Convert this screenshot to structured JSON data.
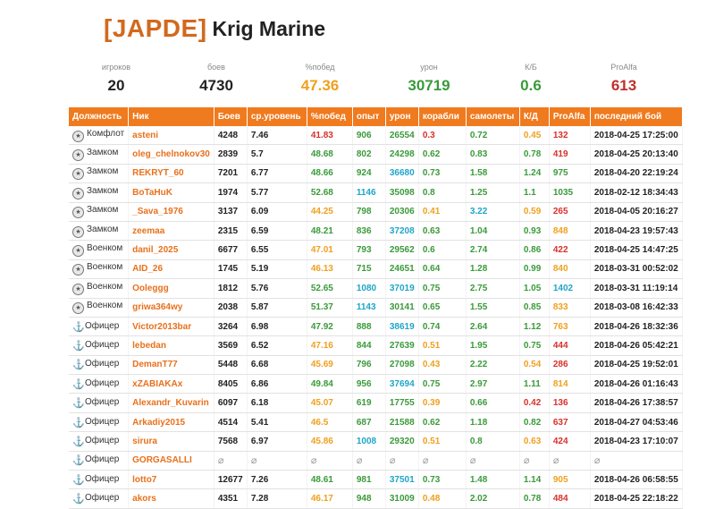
{
  "header": {
    "clan_tag": "[JAPDE]",
    "clan_name": "Krig Marine"
  },
  "summary": {
    "players_label": "игроков",
    "players": "20",
    "battles_label": "боев",
    "battles": "4730",
    "winrate_label": "%побед",
    "winrate": "47.36",
    "damage_label": "урон",
    "damage": "30719",
    "kd_label": "К/Б",
    "kd": "0.6",
    "proalfa_label": "ProAlfa",
    "proalfa": "613"
  },
  "colors": {
    "header_bg": "#f07a1e",
    "nick": "#e8701c",
    "red": "#d9302a",
    "green": "#3a9a3a",
    "orange": "#f0a01e",
    "blue": "#1fa5c8"
  },
  "table": {
    "headers": [
      "Должность",
      "Ник",
      "Боев",
      "ср.уровень",
      "%побед",
      "опыт",
      "урон",
      "корабли",
      "самолеты",
      "К/Д",
      "ProAlfa",
      "последний бой"
    ],
    "rows": [
      {
        "role": "Комфлот",
        "icon": "badge-icon",
        "nick": "asteni",
        "battles": "4248",
        "level": "7.46",
        "win": "41.83",
        "exp": "906",
        "dmg": "26554",
        "ships": "0.3",
        "planes": "0.72",
        "kd": "0.45",
        "pa": "132",
        "last": "2018-04-25 17:25:00",
        "cw": "c-red",
        "ce": "c-green",
        "cd": "c-green",
        "cs": "c-red",
        "cp": "c-green",
        "ck": "c-orange",
        "cpa": "c-red"
      },
      {
        "role": "Замком",
        "icon": "badge-icon",
        "nick": "oleg_chelnokov30",
        "battles": "2839",
        "level": "5.7",
        "win": "48.68",
        "exp": "802",
        "dmg": "24298",
        "ships": "0.62",
        "planes": "0.83",
        "kd": "0.78",
        "pa": "419",
        "last": "2018-04-25 20:13:40",
        "cw": "c-green",
        "ce": "c-green",
        "cd": "c-green",
        "cs": "c-green",
        "cp": "c-green",
        "ck": "c-green",
        "cpa": "c-red"
      },
      {
        "role": "Замком",
        "icon": "badge-icon",
        "nick": "REKRYT_60",
        "battles": "7201",
        "level": "6.77",
        "win": "48.66",
        "exp": "924",
        "dmg": "36680",
        "ships": "0.73",
        "planes": "1.58",
        "kd": "1.24",
        "pa": "975",
        "last": "2018-04-20 22:19:24",
        "cw": "c-green",
        "ce": "c-green",
        "cd": "c-blue",
        "cs": "c-green",
        "cp": "c-green",
        "ck": "c-green",
        "cpa": "c-green"
      },
      {
        "role": "Замком",
        "icon": "badge-icon",
        "nick": "BoTaHuK",
        "battles": "1974",
        "level": "5.77",
        "win": "52.68",
        "exp": "1146",
        "dmg": "35098",
        "ships": "0.8",
        "planes": "1.25",
        "kd": "1.1",
        "pa": "1035",
        "last": "2018-02-12 18:34:43",
        "cw": "c-green",
        "ce": "c-blue",
        "cd": "c-green",
        "cs": "c-green",
        "cp": "c-green",
        "ck": "c-green",
        "cpa": "c-green"
      },
      {
        "role": "Замком",
        "icon": "badge-icon",
        "nick": "_Sava_1976",
        "battles": "3137",
        "level": "6.09",
        "win": "44.25",
        "exp": "798",
        "dmg": "20306",
        "ships": "0.41",
        "planes": "3.22",
        "kd": "0.59",
        "pa": "265",
        "last": "2018-04-05 20:16:27",
        "cw": "c-orange",
        "ce": "c-green",
        "cd": "c-green",
        "cs": "c-orange",
        "cp": "c-blue",
        "ck": "c-orange",
        "cpa": "c-red"
      },
      {
        "role": "Замком",
        "icon": "badge-icon",
        "nick": "zeemaa",
        "battles": "2315",
        "level": "6.59",
        "win": "48.21",
        "exp": "836",
        "dmg": "37208",
        "ships": "0.63",
        "planes": "1.04",
        "kd": "0.93",
        "pa": "848",
        "last": "2018-04-23 19:57:43",
        "cw": "c-green",
        "ce": "c-green",
        "cd": "c-blue",
        "cs": "c-green",
        "cp": "c-green",
        "ck": "c-green",
        "cpa": "c-orange"
      },
      {
        "role": "Военком",
        "icon": "badge-icon",
        "nick": "danil_2025",
        "battles": "6677",
        "level": "6.55",
        "win": "47.01",
        "exp": "793",
        "dmg": "29562",
        "ships": "0.6",
        "planes": "2.74",
        "kd": "0.86",
        "pa": "422",
        "last": "2018-04-25 14:47:25",
        "cw": "c-orange",
        "ce": "c-green",
        "cd": "c-green",
        "cs": "c-green",
        "cp": "c-green",
        "ck": "c-green",
        "cpa": "c-red"
      },
      {
        "role": "Военком",
        "icon": "badge-icon",
        "nick": "AID_26",
        "battles": "1745",
        "level": "5.19",
        "win": "46.13",
        "exp": "715",
        "dmg": "24651",
        "ships": "0.64",
        "planes": "1.28",
        "kd": "0.99",
        "pa": "840",
        "last": "2018-03-31 00:52:02",
        "cw": "c-orange",
        "ce": "c-green",
        "cd": "c-green",
        "cs": "c-green",
        "cp": "c-green",
        "ck": "c-green",
        "cpa": "c-orange"
      },
      {
        "role": "Военком",
        "icon": "badge-icon",
        "nick": "Ooleggg",
        "battles": "1812",
        "level": "5.76",
        "win": "52.65",
        "exp": "1080",
        "dmg": "37019",
        "ships": "0.75",
        "planes": "2.75",
        "kd": "1.05",
        "pa": "1402",
        "last": "2018-03-31 11:19:14",
        "cw": "c-green",
        "ce": "c-blue",
        "cd": "c-blue",
        "cs": "c-green",
        "cp": "c-green",
        "ck": "c-green",
        "cpa": "c-blue"
      },
      {
        "role": "Военком",
        "icon": "badge-icon",
        "nick": "griwa364wy",
        "battles": "2038",
        "level": "5.87",
        "win": "51.37",
        "exp": "1143",
        "dmg": "30141",
        "ships": "0.65",
        "planes": "1.55",
        "kd": "0.85",
        "pa": "833",
        "last": "2018-03-08 16:42:33",
        "cw": "c-green",
        "ce": "c-blue",
        "cd": "c-green",
        "cs": "c-green",
        "cp": "c-green",
        "ck": "c-green",
        "cpa": "c-orange"
      },
      {
        "role": "Офицер",
        "icon": "anchor-icon",
        "nick": "Victor2013bar",
        "battles": "3264",
        "level": "6.98",
        "win": "47.92",
        "exp": "888",
        "dmg": "38619",
        "ships": "0.74",
        "planes": "2.64",
        "kd": "1.12",
        "pa": "763",
        "last": "2018-04-26 18:32:36",
        "cw": "c-green",
        "ce": "c-green",
        "cd": "c-blue",
        "cs": "c-green",
        "cp": "c-green",
        "ck": "c-green",
        "cpa": "c-orange"
      },
      {
        "role": "Офицер",
        "icon": "anchor-icon",
        "nick": "lebedan",
        "battles": "3569",
        "level": "6.52",
        "win": "47.16",
        "exp": "844",
        "dmg": "27639",
        "ships": "0.51",
        "planes": "1.95",
        "kd": "0.75",
        "pa": "444",
        "last": "2018-04-26 05:42:21",
        "cw": "c-orange",
        "ce": "c-green",
        "cd": "c-green",
        "cs": "c-orange",
        "cp": "c-green",
        "ck": "c-green",
        "cpa": "c-red"
      },
      {
        "role": "Офицер",
        "icon": "anchor-icon",
        "nick": "DemanT77",
        "battles": "5448",
        "level": "6.68",
        "win": "45.69",
        "exp": "796",
        "dmg": "27098",
        "ships": "0.43",
        "planes": "2.22",
        "kd": "0.54",
        "pa": "286",
        "last": "2018-04-25 19:52:01",
        "cw": "c-orange",
        "ce": "c-green",
        "cd": "c-green",
        "cs": "c-orange",
        "cp": "c-green",
        "ck": "c-orange",
        "cpa": "c-red"
      },
      {
        "role": "Офицер",
        "icon": "anchor-icon",
        "nick": "xZABIAKAx",
        "battles": "8405",
        "level": "6.86",
        "win": "49.84",
        "exp": "956",
        "dmg": "37694",
        "ships": "0.75",
        "planes": "2.97",
        "kd": "1.11",
        "pa": "814",
        "last": "2018-04-26 01:16:43",
        "cw": "c-green",
        "ce": "c-green",
        "cd": "c-blue",
        "cs": "c-green",
        "cp": "c-green",
        "ck": "c-green",
        "cpa": "c-orange"
      },
      {
        "role": "Офицер",
        "icon": "anchor-icon",
        "nick": "Alexandr_Kuvarin",
        "battles": "6097",
        "level": "6.18",
        "win": "45.07",
        "exp": "619",
        "dmg": "17755",
        "ships": "0.39",
        "planes": "0.66",
        "kd": "0.42",
        "pa": "136",
        "last": "2018-04-26 17:38:57",
        "cw": "c-orange",
        "ce": "c-green",
        "cd": "c-green",
        "cs": "c-orange",
        "cp": "c-green",
        "ck": "c-red",
        "cpa": "c-red"
      },
      {
        "role": "Офицер",
        "icon": "anchor-icon",
        "nick": "Arkadiy2015",
        "battles": "4514",
        "level": "5.41",
        "win": "46.5",
        "exp": "687",
        "dmg": "21588",
        "ships": "0.62",
        "planes": "1.18",
        "kd": "0.82",
        "pa": "637",
        "last": "2018-04-27 04:53:46",
        "cw": "c-orange",
        "ce": "c-green",
        "cd": "c-green",
        "cs": "c-green",
        "cp": "c-green",
        "ck": "c-green",
        "cpa": "c-red"
      },
      {
        "role": "Офицер",
        "icon": "anchor-icon",
        "nick": "sirura",
        "battles": "7568",
        "level": "6.97",
        "win": "45.86",
        "exp": "1008",
        "dmg": "29320",
        "ships": "0.51",
        "planes": "0.8",
        "kd": "0.63",
        "pa": "424",
        "last": "2018-04-23 17:10:07",
        "cw": "c-orange",
        "ce": "c-blue",
        "cd": "c-green",
        "cs": "c-orange",
        "cp": "c-green",
        "ck": "c-orange",
        "cpa": "c-red"
      },
      {
        "role": "Офицер",
        "icon": "anchor-icon",
        "nick": "GORGASALLI",
        "battles": "",
        "level": "",
        "win": "",
        "exp": "",
        "dmg": "",
        "ships": "",
        "planes": "",
        "kd": "",
        "pa": "",
        "last": "",
        "na": true
      },
      {
        "role": "Офицер",
        "icon": "anchor-icon",
        "nick": "lotto7",
        "battles": "12677",
        "level": "7.26",
        "win": "48.61",
        "exp": "981",
        "dmg": "37501",
        "ships": "0.73",
        "planes": "1.48",
        "kd": "1.14",
        "pa": "905",
        "last": "2018-04-26 06:58:55",
        "cw": "c-green",
        "ce": "c-green",
        "cd": "c-blue",
        "cs": "c-green",
        "cp": "c-green",
        "ck": "c-green",
        "cpa": "c-orange"
      },
      {
        "role": "Офицер",
        "icon": "anchor-icon",
        "nick": "akors",
        "battles": "4351",
        "level": "7.28",
        "win": "46.17",
        "exp": "948",
        "dmg": "31009",
        "ships": "0.48",
        "planes": "2.02",
        "kd": "0.78",
        "pa": "484",
        "last": "2018-04-25 22:18:22",
        "cw": "c-orange",
        "ce": "c-green",
        "cd": "c-green",
        "cs": "c-orange",
        "cp": "c-green",
        "ck": "c-green",
        "cpa": "c-red"
      }
    ]
  }
}
